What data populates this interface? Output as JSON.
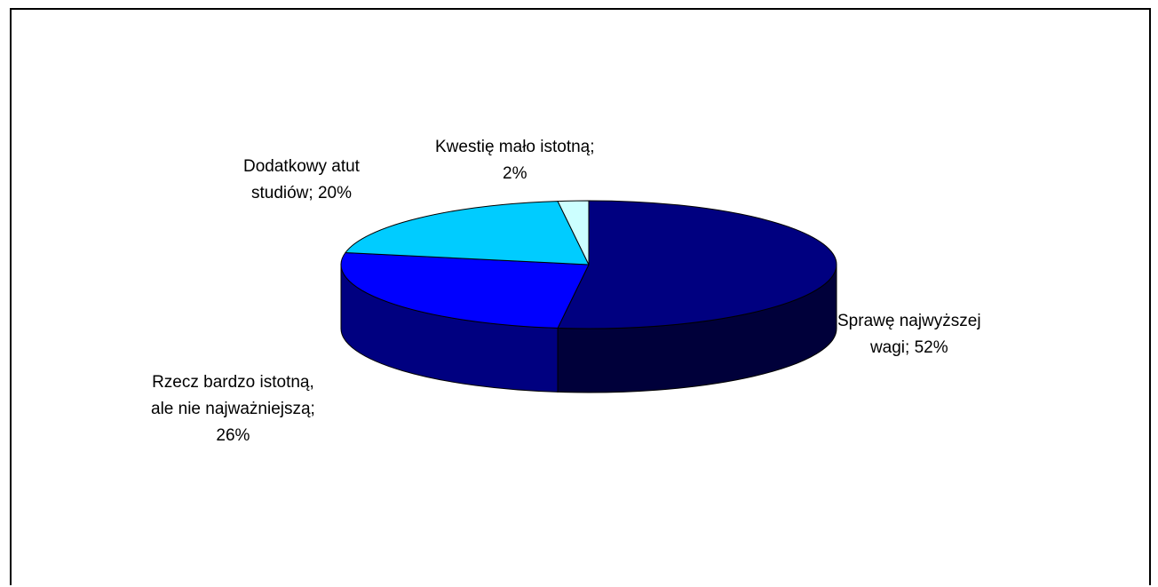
{
  "chart_data": {
    "type": "pie",
    "style": "3d",
    "title": "",
    "legend": "none",
    "slices": [
      {
        "name": "Sprawę najwyższej wagi",
        "value": 52,
        "color": "#000080",
        "side_color": "#00003a",
        "label_lines": [
          "Sprawę najwyższej",
          "wagi; 52%"
        ]
      },
      {
        "name": "Rzecz bardzo istotną, ale nie najważniejszą",
        "value": 26,
        "color": "#0000ff",
        "side_color": "#000080",
        "label_lines": [
          "Rzecz bardzo istotną,",
          "ale nie najważniejszą;",
          "26%"
        ]
      },
      {
        "name": "Dodatkowy atut studiów",
        "value": 20,
        "color": "#00ccff",
        "side_color": "#0099cc",
        "label_lines": [
          "Dodatkowy atut",
          "studiów; 20%"
        ]
      },
      {
        "name": "Kwestię mało istotną",
        "value": 2,
        "color": "#ccffff",
        "side_color": "#99cccc",
        "label_lines": [
          "Kwestię mało istotną;",
          "2%"
        ]
      }
    ]
  }
}
